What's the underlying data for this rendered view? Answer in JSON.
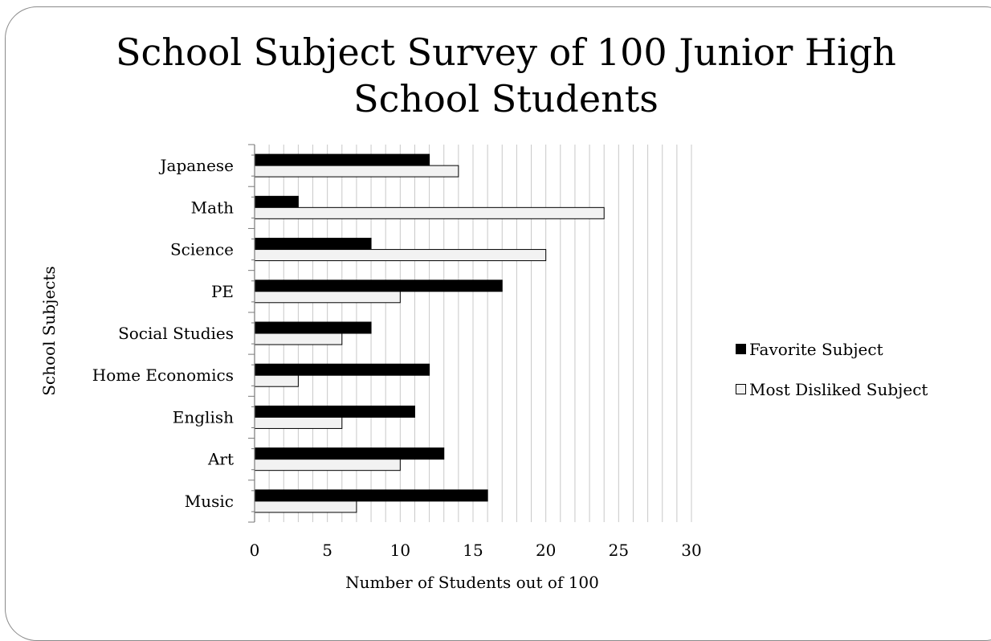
{
  "chart_data": {
    "type": "bar",
    "orientation": "horizontal",
    "title": "School Subject Survey of 100 Junior High School Students",
    "title_lines": [
      "School Subject Survey of 100 Junior High",
      "School Students"
    ],
    "xlabel": "Number of Students out of 100",
    "ylabel": "School Subjects",
    "xlim": [
      0,
      30
    ],
    "xticks": [
      0,
      5,
      10,
      15,
      20,
      25,
      30
    ],
    "grid": "vertical minor gridlines every 1",
    "legend": "right",
    "categories": [
      "Japanese",
      "Math",
      "Science",
      "PE",
      "Social Studies",
      "Home Economics",
      "English",
      "Art",
      "Music"
    ],
    "series": [
      {
        "name": "Favorite Subject",
        "color": "#000000",
        "values": [
          12,
          3,
          8,
          17,
          8,
          12,
          11,
          13,
          16
        ]
      },
      {
        "name": "Most Disliked Subject",
        "color": "#f2f2f2",
        "values": [
          14,
          24,
          20,
          10,
          6,
          3,
          6,
          10,
          7
        ]
      }
    ]
  }
}
